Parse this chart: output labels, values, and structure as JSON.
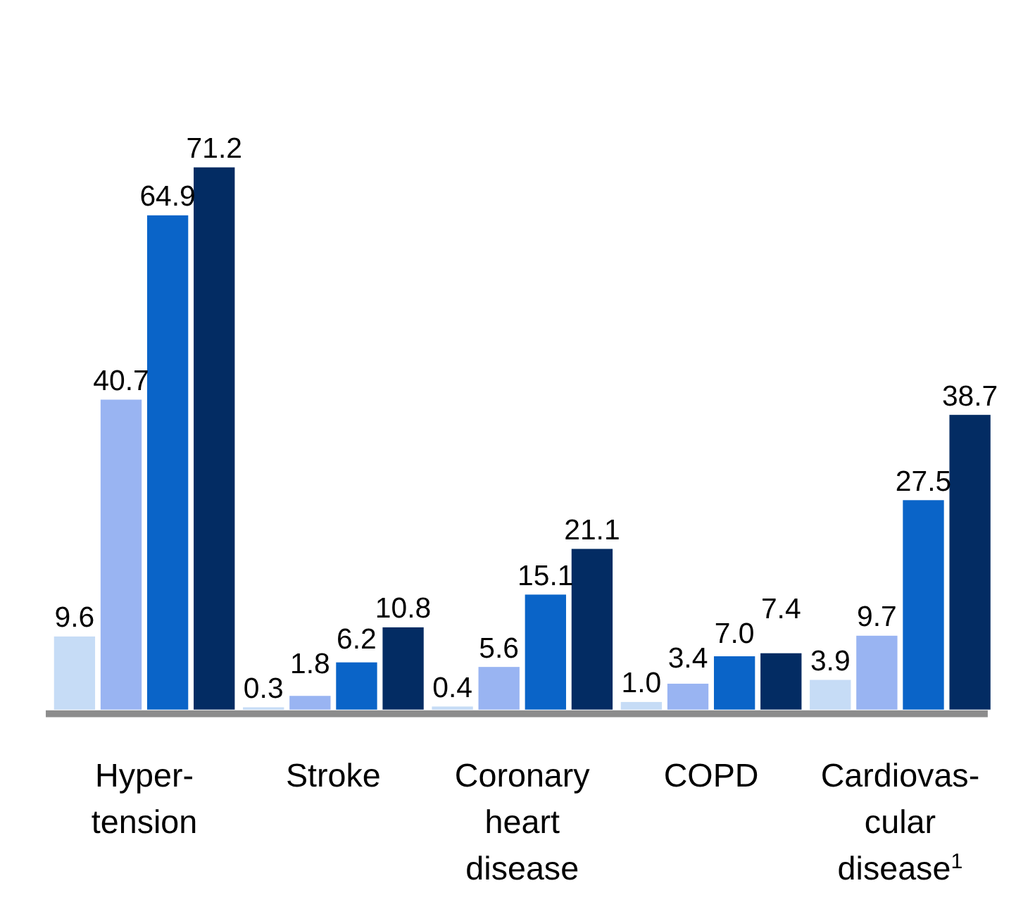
{
  "chart_data": {
    "type": "bar",
    "categories": [
      "Hyper-\ntension",
      "Stroke",
      "Coronary\nheart\ndisease",
      "COPD",
      "Cardiovas-\ncular\ndisease$^{1}$"
    ],
    "series": [
      {
        "color": "#c6dcf6",
        "values": [
          9.6,
          0.3,
          0.4,
          1.0,
          3.9
        ],
        "value_labels": [
          "9.6",
          "0.3",
          "0.4",
          "1.0",
          "3.9"
        ]
      },
      {
        "color": "#99b4f2",
        "values": [
          40.7,
          1.8,
          5.6,
          3.4,
          9.7
        ],
        "value_labels": [
          "40.7",
          "1.8",
          "5.6",
          "3.4",
          "9.7"
        ]
      },
      {
        "color": "#0a64c8",
        "values": [
          64.9,
          6.2,
          15.1,
          7.0,
          27.5
        ],
        "value_labels": [
          "64.9",
          "6.2",
          "15.1",
          "7.0",
          "27.5"
        ]
      },
      {
        "color": "#032c63",
        "values": [
          71.2,
          10.8,
          21.1,
          7.4,
          38.7
        ],
        "value_labels": [
          "71.2",
          "10.8",
          "21.1",
          "7.4",
          "38.7"
        ]
      }
    ]
  }
}
